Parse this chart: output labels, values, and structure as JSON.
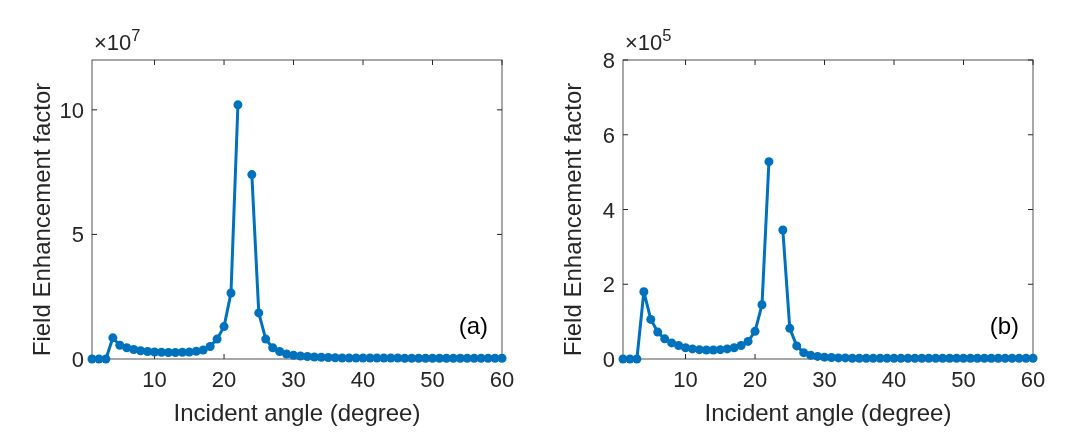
{
  "chart_data": [
    {
      "type": "line",
      "xlabel": "Incident angle (degree)",
      "ylabel": "Field Enhancement factor",
      "annotations": [
        "×10$^{7}$",
        "(a)"
      ],
      "x": [
        1,
        2,
        3,
        4,
        5,
        6,
        7,
        8,
        9,
        10,
        11,
        12,
        13,
        14,
        15,
        16,
        17,
        18,
        19,
        20,
        21,
        22,
        23,
        24,
        25,
        26,
        27,
        28,
        29,
        30,
        31,
        32,
        33,
        34,
        35,
        36,
        37,
        38,
        39,
        40,
        41,
        42,
        43,
        44,
        45,
        46,
        47,
        48,
        49,
        50,
        51,
        52,
        53,
        54,
        55,
        56,
        57,
        58,
        59,
        60
      ],
      "xlim": [
        1,
        60
      ],
      "xticks": [
        10,
        20,
        30,
        40,
        50,
        60
      ],
      "ylim": [
        0,
        12
      ],
      "yticks": [
        0,
        5,
        10
      ],
      "marker": "circle",
      "line_style": "solid",
      "series": [
        {
          "color": "#0072bd",
          "values": [
            0,
            0,
            0,
            0.85,
            0.55,
            0.45,
            0.38,
            0.33,
            0.3,
            0.28,
            0.27,
            0.26,
            0.26,
            0.27,
            0.28,
            0.31,
            0.36,
            0.5,
            0.8,
            1.3,
            2.65,
            10.2,
            null,
            7.4,
            1.85,
            0.8,
            0.45,
            0.3,
            0.2,
            0.15,
            0.12,
            0.1,
            0.08,
            0.07,
            0.06,
            0.05,
            0.04,
            0.04,
            0.04,
            0.04,
            0.04,
            0.04,
            0.04,
            0.04,
            0.04,
            0.03,
            0.03,
            0.03,
            0.03,
            0.03,
            0.03,
            0.03,
            0.03,
            0.03,
            0.03,
            0.03,
            0.03,
            0.03,
            0.03,
            0.03
          ]
        }
      ]
    },
    {
      "type": "line",
      "xlabel": "Incident angle (degree)",
      "ylabel": "Field Enhancement factor",
      "annotations": [
        "×10$^{5}$",
        "(b)"
      ],
      "x": [
        1,
        2,
        3,
        4,
        5,
        6,
        7,
        8,
        9,
        10,
        11,
        12,
        13,
        14,
        15,
        16,
        17,
        18,
        19,
        20,
        21,
        22,
        23,
        24,
        25,
        26,
        27,
        28,
        29,
        30,
        31,
        32,
        33,
        34,
        35,
        36,
        37,
        38,
        39,
        40,
        41,
        42,
        43,
        44,
        45,
        46,
        47,
        48,
        49,
        50,
        51,
        52,
        53,
        54,
        55,
        56,
        57,
        58,
        59,
        60
      ],
      "xlim": [
        1,
        60
      ],
      "xticks": [
        10,
        20,
        30,
        40,
        50,
        60
      ],
      "ylim": [
        0,
        8
      ],
      "yticks": [
        0,
        2,
        4,
        6,
        8
      ],
      "marker": "circle",
      "line_style": "solid",
      "series": [
        {
          "color": "#0072bd",
          "values": [
            0,
            0,
            0,
            1.8,
            1.06,
            0.72,
            0.54,
            0.43,
            0.36,
            0.3,
            0.27,
            0.25,
            0.24,
            0.24,
            0.25,
            0.27,
            0.3,
            0.36,
            0.47,
            0.74,
            1.45,
            5.28,
            null,
            3.45,
            0.82,
            0.35,
            0.17,
            0.1,
            0.07,
            0.05,
            0.04,
            0.03,
            0.03,
            0.02,
            0.02,
            0.02,
            0.02,
            0.02,
            0.02,
            0.02,
            0.02,
            0.02,
            0.02,
            0.02,
            0.02,
            0.02,
            0.02,
            0.02,
            0.02,
            0.02,
            0.02,
            0.02,
            0.02,
            0.02,
            0.02,
            0.02,
            0.02,
            0.02,
            0.02,
            0.02
          ]
        }
      ]
    }
  ]
}
